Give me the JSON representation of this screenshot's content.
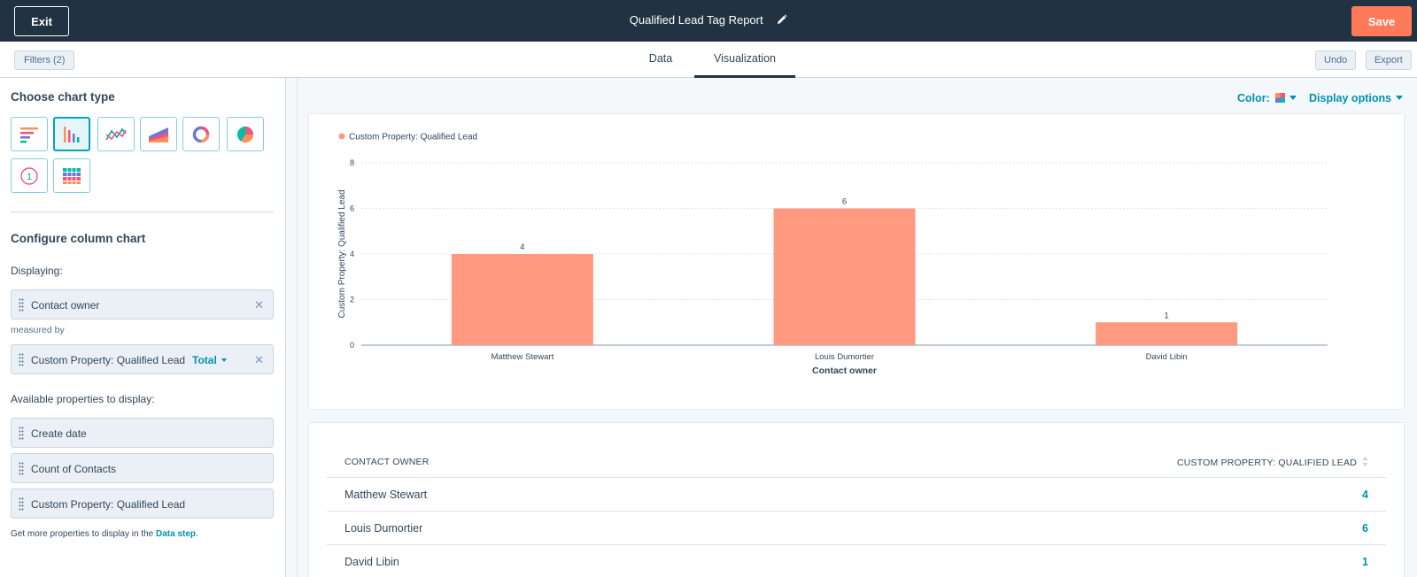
{
  "header": {
    "exit_label": "Exit",
    "title": "Qualified Lead Tag Report",
    "save_label": "Save"
  },
  "subbar": {
    "filters_label": "Filters (2)",
    "tabs": [
      {
        "label": "Data",
        "active": false
      },
      {
        "label": "Visualization",
        "active": true
      }
    ],
    "undo_label": "Undo",
    "export_label": "Export"
  },
  "left_panel": {
    "choose_chart_type": "Choose chart type",
    "chart_types": [
      {
        "icon": "horizontal-bar-chart-icon",
        "active": false
      },
      {
        "icon": "column-chart-icon",
        "active": true
      },
      {
        "icon": "line-chart-icon",
        "active": false
      },
      {
        "icon": "area-chart-icon",
        "active": false
      },
      {
        "icon": "donut-chart-icon",
        "active": false
      },
      {
        "icon": "pie-chart-icon",
        "active": false
      },
      {
        "icon": "summary-number-icon",
        "active": false
      },
      {
        "icon": "table-icon",
        "active": false
      }
    ],
    "summary_number_glyph": "1",
    "configure_title": "Configure column chart",
    "displaying_label": "Displaying:",
    "displaying_value": "Contact owner",
    "measured_by_label": "measured by",
    "measure_value": "Custom Property: Qualified Lead",
    "measure_aggregate": "Total",
    "available_label": "Available properties to display:",
    "available_properties": [
      "Create date",
      "Count of Contacts",
      "Custom Property: Qualified Lead"
    ],
    "note_prefix": "Get more properties to display in the ",
    "note_link": "Data step",
    "note_suffix": "."
  },
  "chart_options": {
    "color_label": "Color:",
    "display_options_label": "Display options",
    "palette": [
      "#ff8f59",
      "#f2547d",
      "#6a78d1",
      "#00bda5"
    ]
  },
  "chart_data": {
    "type": "bar",
    "categories": [
      "Matthew Stewart",
      "Louis Dumortier",
      "David Libin"
    ],
    "series": [
      {
        "name": "Custom Property: Qualified Lead",
        "values": [
          4,
          6,
          1
        ],
        "color": "#ff9980"
      }
    ],
    "data_labels": [
      "4",
      "6",
      "1"
    ],
    "xlabel": "Contact owner",
    "ylabel": "Custom Property: Qualified Lead",
    "ylim": [
      0,
      8
    ],
    "yticks": [
      0,
      2,
      4,
      6,
      8
    ],
    "ytick_labels": [
      "0",
      "2",
      "4",
      "6",
      "8"
    ],
    "grid": true,
    "legend_position": "top-left"
  },
  "table": {
    "columns": [
      "CONTACT OWNER",
      "CUSTOM PROPERTY: QUALIFIED LEAD"
    ],
    "rows": [
      {
        "owner": "Matthew Stewart",
        "value": "4"
      },
      {
        "owner": "Louis Dumortier",
        "value": "6"
      },
      {
        "owner": "David Libin",
        "value": "1"
      }
    ]
  }
}
